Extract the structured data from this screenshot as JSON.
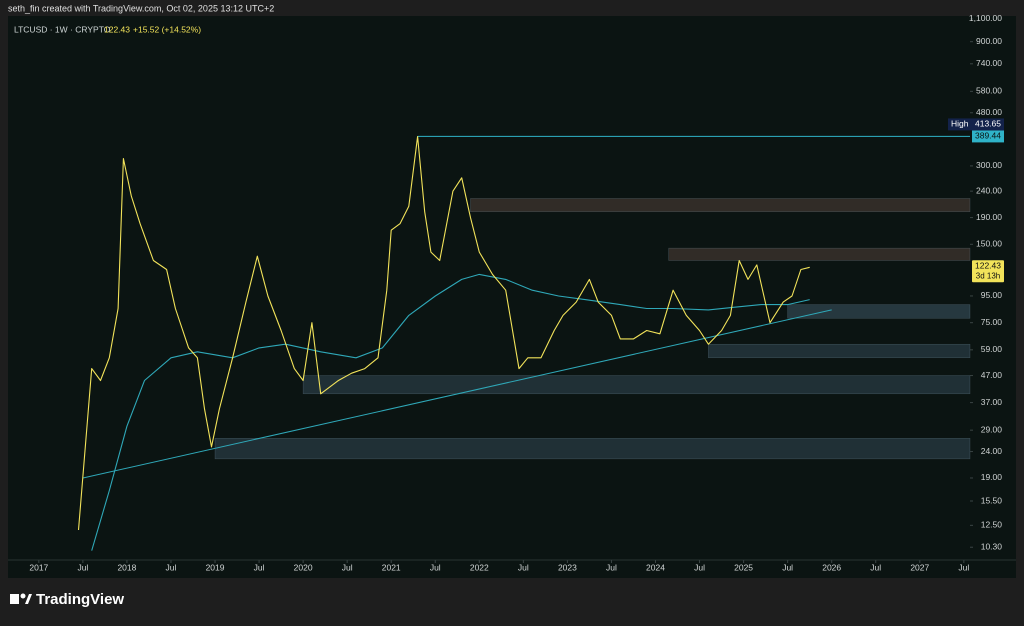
{
  "header": "seth_fin created with TradingView.com, Oct 02, 2025 13:12 UTC+2",
  "footer": "TradingView",
  "chart_data": {
    "type": "line",
    "symbol": "LTCUSD · 1W · CRYPTO",
    "last_price": 122.43,
    "change": "+15.52 (+14.52%)",
    "countdown": "3d 13h",
    "high_label": "High",
    "high": 413.65,
    "high_close": 389.44,
    "log_scale": true,
    "grid": false,
    "xlim": [
      2016.65,
      2027.57
    ],
    "ylim": [
      9.2,
      1170
    ],
    "xticks": [
      2017,
      {
        "value": 2017.5,
        "label": "Jul"
      },
      2018,
      {
        "value": 2018.5,
        "label": "Jul"
      },
      2019,
      {
        "value": 2019.5,
        "label": "Jul"
      },
      2020,
      {
        "value": 2020.5,
        "label": "Jul"
      },
      2021,
      {
        "value": 2021.5,
        "label": "Jul"
      },
      2022,
      {
        "value": 2022.5,
        "label": "Jul"
      },
      2023,
      {
        "value": 2023.5,
        "label": "Jul"
      },
      2024,
      {
        "value": 2024.5,
        "label": "Jul"
      },
      2025,
      {
        "value": 2025.5,
        "label": "Jul"
      },
      2026,
      {
        "value": 2026.5,
        "label": "Jul"
      },
      2027,
      {
        "value": 2027.5,
        "label": "Jul"
      }
    ],
    "yticks": [
      {
        "value": 10.3,
        "label": "10.30"
      },
      {
        "value": 12.5,
        "label": "12.50"
      },
      {
        "value": 15.5,
        "label": "15.50"
      },
      {
        "value": 19,
        "label": "19.00"
      },
      {
        "value": 24,
        "label": "24.00"
      },
      {
        "value": 29,
        "label": "29.00"
      },
      {
        "value": 37,
        "label": "37.00"
      },
      {
        "value": 47,
        "label": "47.00"
      },
      {
        "value": 59,
        "label": "59.00"
      },
      {
        "value": 75,
        "label": "75.00"
      },
      {
        "value": 95,
        "label": "95.00"
      },
      {
        "value": 150,
        "label": "150.00"
      },
      {
        "value": 190,
        "label": "190.00"
      },
      {
        "value": 240,
        "label": "240.00"
      },
      {
        "value": 300,
        "label": "300.00"
      },
      {
        "value": 480,
        "label": "480.00"
      },
      {
        "value": 580,
        "label": "580.00"
      },
      {
        "value": 740,
        "label": "740.00"
      },
      {
        "value": 900,
        "label": "900.00"
      },
      {
        "value": 1100,
        "label": "1,100.00"
      }
    ],
    "series": [
      {
        "color": "#f2e35a",
        "x": [
          2017.45,
          2017.6,
          2017.7,
          2017.8,
          2017.9,
          2017.96,
          2018.05,
          2018.15,
          2018.3,
          2018.45,
          2018.55,
          2018.7,
          2018.8,
          2018.88,
          2018.96,
          2019.05,
          2019.2,
          2019.35,
          2019.48,
          2019.6,
          2019.75,
          2019.9,
          2020.0,
          2020.1,
          2020.2,
          2020.4,
          2020.55,
          2020.7,
          2020.85,
          2020.95,
          2021.0,
          2021.1,
          2021.2,
          2021.3,
          2021.38,
          2021.45,
          2021.55,
          2021.7,
          2021.8,
          2021.9,
          2022.0,
          2022.15,
          2022.3,
          2022.45,
          2022.55,
          2022.7,
          2022.85,
          2022.95,
          2023.1,
          2023.25,
          2023.35,
          2023.5,
          2023.6,
          2023.75,
          2023.9,
          2024.05,
          2024.2,
          2024.35,
          2024.5,
          2024.6,
          2024.75,
          2024.85,
          2024.95,
          2025.05,
          2025.15,
          2025.3,
          2025.45,
          2025.55,
          2025.65,
          2025.75
        ],
        "values": [
          12,
          50,
          45,
          55,
          85,
          320,
          230,
          180,
          130,
          120,
          85,
          60,
          55,
          35,
          25,
          35,
          55,
          90,
          135,
          95,
          70,
          50,
          45,
          75,
          40,
          45,
          48,
          50,
          55,
          100,
          170,
          180,
          210,
          389,
          200,
          140,
          130,
          240,
          270,
          190,
          140,
          115,
          100,
          50,
          55,
          55,
          70,
          80,
          90,
          110,
          90,
          80,
          65,
          65,
          70,
          68,
          100,
          80,
          70,
          62,
          70,
          80,
          130,
          110,
          125,
          75,
          90,
          95,
          120,
          122.43
        ]
      },
      {
        "color": "#2fa8b8",
        "x": [
          2017.6,
          2017.8,
          2018.0,
          2018.2,
          2018.5,
          2018.8,
          2019.2,
          2019.5,
          2019.8,
          2020.2,
          2020.6,
          2020.9,
          2021.2,
          2021.5,
          2021.8,
          2022.0,
          2022.3,
          2022.6,
          2022.9,
          2023.2,
          2023.6,
          2023.9,
          2024.2,
          2024.6,
          2024.9,
          2025.2,
          2025.5,
          2025.75
        ],
        "values": [
          10,
          17,
          30,
          45,
          55,
          58,
          55,
          60,
          62,
          58,
          55,
          60,
          80,
          95,
          110,
          115,
          110,
          100,
          95,
          92,
          88,
          85,
          85,
          84,
          86,
          88,
          88,
          92
        ]
      }
    ],
    "trendline": {
      "color": "#2fa8b8",
      "x": [
        2017.5,
        2026.0
      ],
      "values": [
        19,
        84
      ]
    },
    "zones": [
      {
        "x": [
          2019.0,
          2027.57
        ],
        "values": [
          22.5,
          27
        ],
        "color": "rgba(110,150,180,0.22)"
      },
      {
        "x": [
          2020.0,
          2027.57
        ],
        "values": [
          40,
          47
        ],
        "color": "rgba(110,150,180,0.22)"
      },
      {
        "x": [
          2024.6,
          2027.57
        ],
        "values": [
          55,
          62
        ],
        "color": "rgba(110,150,180,0.22)"
      },
      {
        "x": [
          2025.5,
          2027.57
        ],
        "values": [
          78,
          88
        ],
        "color": "rgba(110,150,180,0.28)"
      },
      {
        "x": [
          2021.9,
          2027.57
        ],
        "values": [
          200,
          225
        ],
        "color": "rgba(120,90,80,0.35)"
      },
      {
        "x": [
          2024.15,
          2027.57
        ],
        "values": [
          130,
          145
        ],
        "color": "rgba(120,90,80,0.35)"
      }
    ]
  }
}
